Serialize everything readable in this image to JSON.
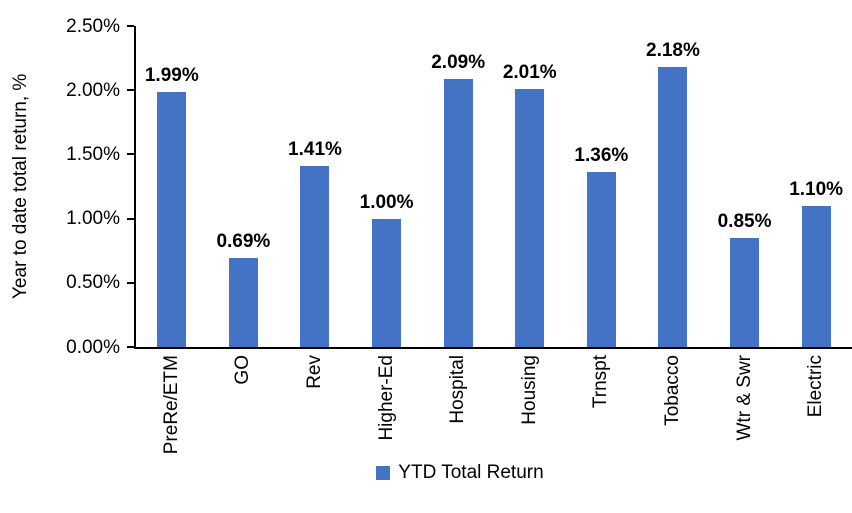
{
  "chart_data": {
    "type": "bar",
    "title": "",
    "ylabel": "Year to date total return, %",
    "xlabel": "",
    "categories": [
      "PreRe/ETM",
      "GO",
      "Rev",
      "Higher-Ed",
      "Hospital",
      "Housing",
      "Trnspt",
      "Tobacco",
      "Wtr & Swr",
      "Electric"
    ],
    "values": [
      1.99,
      0.69,
      1.41,
      1.0,
      2.09,
      2.01,
      1.36,
      2.18,
      0.85,
      1.1
    ],
    "data_labels": [
      "1.99%",
      "0.69%",
      "1.41%",
      "1.00%",
      "2.09%",
      "2.01%",
      "1.36%",
      "2.18%",
      "0.85%",
      "1.10%"
    ],
    "ylim": [
      0,
      2.5
    ],
    "ytick_labels": [
      "0.00%",
      "0.50%",
      "1.00%",
      "1.50%",
      "2.00%",
      "2.50%"
    ],
    "grid": false,
    "legend": {
      "label": "YTD Total Return",
      "position": "bottom"
    },
    "bar_color": "#4472C4",
    "axis_color": "#000000",
    "text_color": "#000000"
  }
}
